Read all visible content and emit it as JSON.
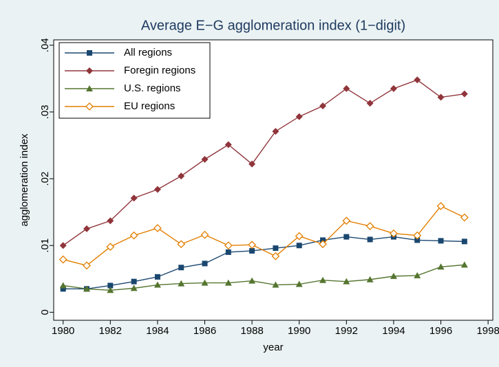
{
  "chart_data": {
    "type": "line",
    "title": "Average E−G agglomeration index (1−digit)",
    "x_label": "year",
    "y_label": "agglomeration index",
    "x": [
      1980,
      1981,
      1982,
      1983,
      1984,
      1985,
      1986,
      1987,
      1988,
      1989,
      1990,
      1991,
      1992,
      1993,
      1994,
      1995,
      1996,
      1997
    ],
    "series": [
      {
        "name": "All regions",
        "color": "#1a476f",
        "marker": "square",
        "values": [
          0.0035,
          0.0035,
          0.004,
          0.0046,
          0.0053,
          0.0067,
          0.0073,
          0.009,
          0.0092,
          0.0096,
          0.01,
          0.0108,
          0.0113,
          0.0109,
          0.0113,
          0.0108,
          0.0107,
          0.0106
        ]
      },
      {
        "name": "Foregin regions",
        "color": "#90353b",
        "marker": "diamond",
        "values": [
          0.01,
          0.0125,
          0.0137,
          0.0171,
          0.0184,
          0.0204,
          0.0229,
          0.0251,
          0.0222,
          0.0271,
          0.0293,
          0.0309,
          0.0335,
          0.0313,
          0.0335,
          0.0348,
          0.0322,
          0.0327
        ]
      },
      {
        "name": "U.S. regions",
        "color": "#55752f",
        "marker": "triangle",
        "values": [
          0.004,
          0.0035,
          0.0033,
          0.0036,
          0.0041,
          0.0043,
          0.0044,
          0.0044,
          0.0047,
          0.0041,
          0.0042,
          0.0048,
          0.0046,
          0.0049,
          0.0054,
          0.0055,
          0.0068,
          0.0071
        ]
      },
      {
        "name": "EU regions",
        "color": "#e37e00",
        "marker": "diamond-hollow",
        "values": [
          0.0079,
          0.007,
          0.0098,
          0.0115,
          0.0126,
          0.0102,
          0.0116,
          0.01,
          0.0101,
          0.0084,
          0.0114,
          0.0102,
          0.0137,
          0.0129,
          0.0118,
          0.0115,
          0.0159,
          0.0142
        ]
      }
    ],
    "xlim": [
      1979.6,
      1998.2
    ],
    "xticks": [
      1980,
      1982,
      1984,
      1986,
      1988,
      1990,
      1992,
      1994,
      1996,
      1998
    ],
    "ylim": [
      -0.0012,
      0.0408
    ],
    "yticks": [
      0,
      {
        "value": 0.01,
        "label": ".01"
      },
      {
        "value": 0.02,
        "label": ".02"
      },
      {
        "value": 0.03,
        "label": ".03"
      },
      {
        "value": 0.04,
        "label": ".04"
      }
    ],
    "grid": false,
    "legend_position": "top-left"
  }
}
